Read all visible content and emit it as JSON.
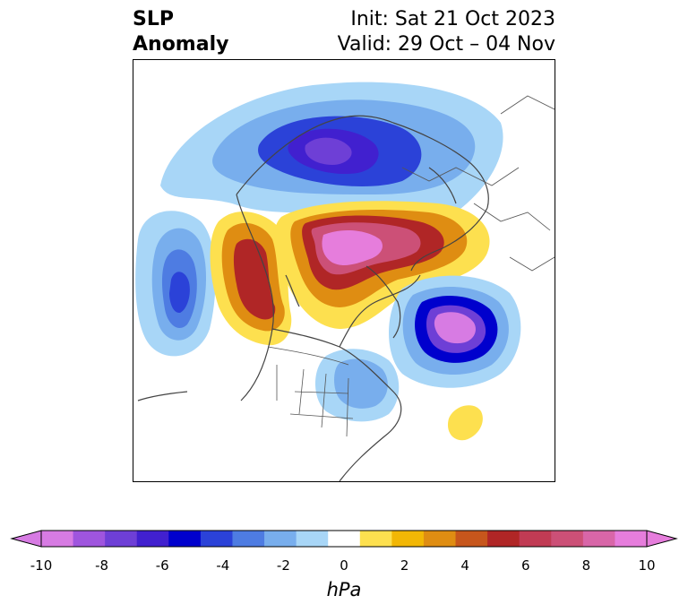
{
  "title": {
    "left_line1": "SLP",
    "left_line2": "Anomaly",
    "right_line1": "Init: Sat 21 Oct 2023",
    "right_line2": "Valid: 29 Oct – 04 Nov"
  },
  "colorbar": {
    "unit": "hPa",
    "ticks": [
      "-10",
      "-8",
      "-6",
      "-4",
      "-2",
      "0",
      "2",
      "4",
      "6",
      "8",
      "10"
    ],
    "colors": [
      "#d77be3",
      "#9f55de",
      "#6e3fd6",
      "#4120cf",
      "#0000cd",
      "#2b42d8",
      "#4e7ce2",
      "#78aeed",
      "#a8d6f7",
      "#ffffff",
      "#fde04f",
      "#f2b705",
      "#df8d12",
      "#c7561c",
      "#b02626",
      "#c13b54",
      "#cc5077",
      "#d866a8",
      "#e67ddc"
    ],
    "under_color": "#d77be3",
    "over_color": "#e67ddc"
  },
  "map": {
    "projection": "north-polar-stereographic",
    "features": [
      "coastlines",
      "country-borders",
      "state-borders"
    ],
    "anomaly_centers": [
      {
        "label": "negative-center-north",
        "sign": "low"
      },
      {
        "label": "negative-center-north-pacific",
        "sign": "low"
      },
      {
        "label": "negative-center-north-atlantic",
        "sign": "low"
      },
      {
        "label": "positive-center-arctic",
        "sign": "high"
      },
      {
        "label": "positive-center-west-coast",
        "sign": "high"
      },
      {
        "label": "positive-center-atlantic-small",
        "sign": "high"
      }
    ]
  }
}
